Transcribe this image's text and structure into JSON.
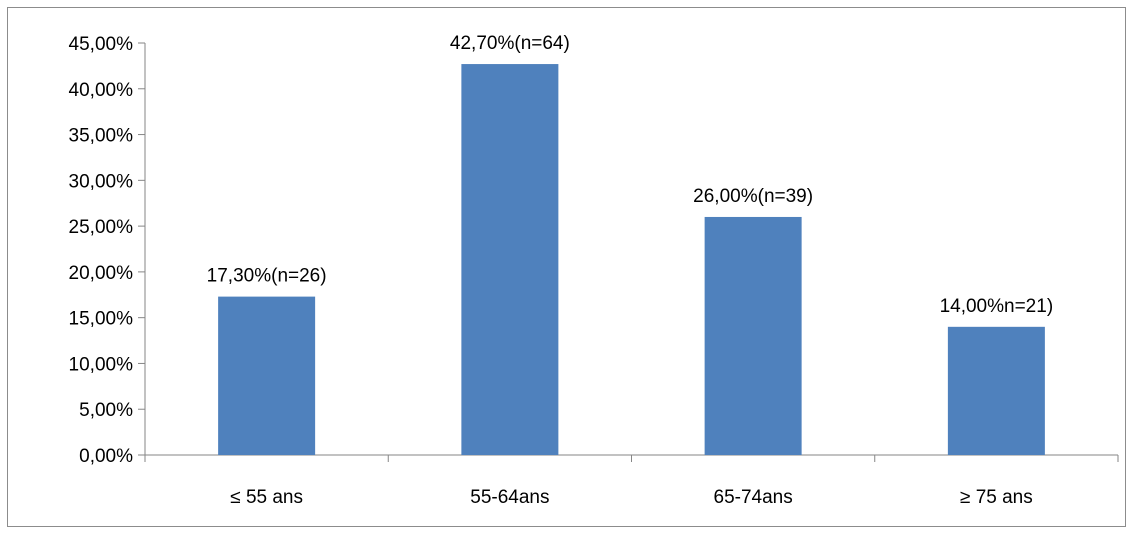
{
  "chart_data": {
    "type": "bar",
    "title": "",
    "xlabel": "",
    "ylabel": "",
    "categories": [
      "≤ 55 ans",
      "55-64ans",
      "65-74ans",
      "≥ 75 ans"
    ],
    "values": [
      17.3,
      42.7,
      26.0,
      14.0
    ],
    "data_labels": [
      "17,30%(n=26)",
      "42,70%(n=64)",
      "26,00%(n=39)",
      "14,00%n=21)"
    ],
    "ylim": [
      0,
      45
    ],
    "yticks": [
      0,
      5,
      10,
      15,
      20,
      25,
      30,
      35,
      40,
      45
    ],
    "ytick_labels": [
      "0,00%",
      "5,00%",
      "10,00%",
      "15,00%",
      "20,00%",
      "25,00%",
      "30,00%",
      "35,00%",
      "40,00%",
      "45,00%"
    ],
    "grid": false,
    "legend": "none",
    "bar_color": "#4f81bd",
    "axis_color": "#868686"
  }
}
